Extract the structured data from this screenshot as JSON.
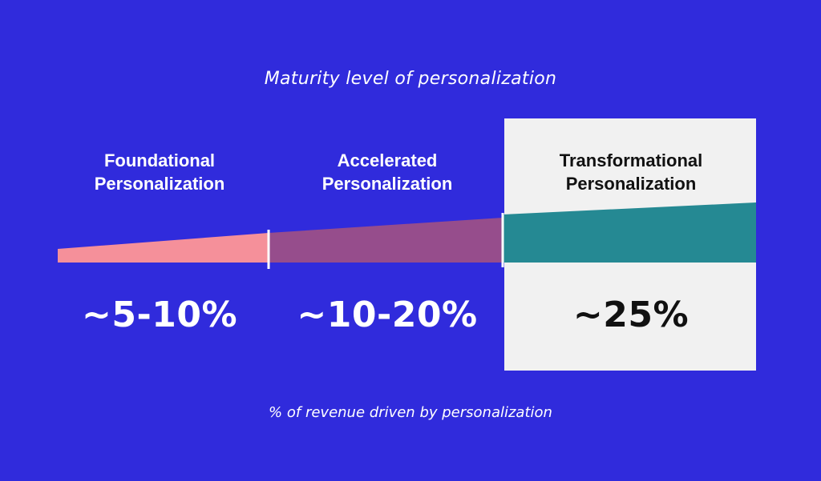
{
  "title": "Maturity level of personalization",
  "footer": "% of revenue driven by personalization",
  "colors": {
    "background": "#302bdc",
    "highlight_box": "#f1f1f1",
    "stage1": "#f5909a",
    "stage2": "#964d8c",
    "stage3": "#258993",
    "divider": "#ffffff"
  },
  "stages": [
    {
      "line1": "Foundational",
      "line2": "Personalization",
      "value": "~5-10%"
    },
    {
      "line1": "Accelerated",
      "line2": "Personalization",
      "value": "~10-20%"
    },
    {
      "line1": "Transformational",
      "line2": "Personalization",
      "value": "~25%",
      "highlighted": true
    }
  ]
}
